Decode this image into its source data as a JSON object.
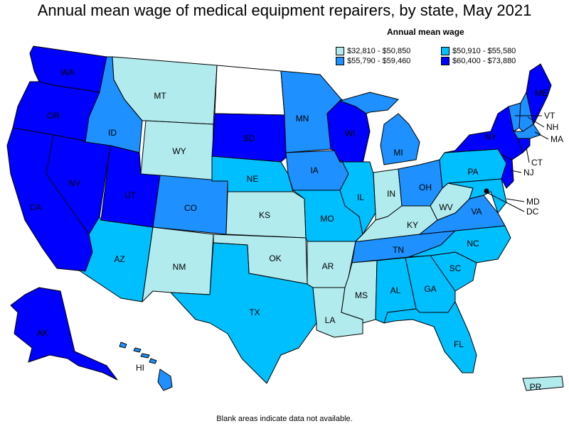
{
  "title": "Annual mean wage of medical equipment repairers, by state, May 2021",
  "legend": {
    "title": "Annual mean wage",
    "items": [
      {
        "label": "$32,810 - $50,850",
        "color": "#b2ebee"
      },
      {
        "label": "$50,910 - $55,580",
        "color": "#00bfff"
      },
      {
        "label": "$55,790 - $59,460",
        "color": "#1e90ff"
      },
      {
        "label": "$60,400 - $73,880",
        "color": "#0000ff"
      }
    ]
  },
  "footnote": "Blank areas indicate data not available.",
  "states": {
    "WA": {
      "label": "WA",
      "tier": 3
    },
    "OR": {
      "label": "OR",
      "tier": 3
    },
    "CA": {
      "label": "CA",
      "tier": 3
    },
    "NV": {
      "label": "NV",
      "tier": 3
    },
    "ID": {
      "label": "ID",
      "tier": 2
    },
    "MT": {
      "label": "MT",
      "tier": 0
    },
    "WY": {
      "label": "WY",
      "tier": 0
    },
    "UT": {
      "label": "UT",
      "tier": 3
    },
    "AZ": {
      "label": "AZ",
      "tier": 1
    },
    "CO": {
      "label": "CO",
      "tier": 2
    },
    "NM": {
      "label": "NM",
      "tier": 0
    },
    "ND": {
      "label": "",
      "tier": -1
    },
    "SD": {
      "label": "SD",
      "tier": 3
    },
    "NE": {
      "label": "NE",
      "tier": 1
    },
    "KS": {
      "label": "KS",
      "tier": 0
    },
    "OK": {
      "label": "OK",
      "tier": 0
    },
    "TX": {
      "label": "TX",
      "tier": 1
    },
    "MN": {
      "label": "MN",
      "tier": 2
    },
    "IA": {
      "label": "IA",
      "tier": 2
    },
    "MO": {
      "label": "MO",
      "tier": 1
    },
    "AR": {
      "label": "AR",
      "tier": 0
    },
    "LA": {
      "label": "LA",
      "tier": 0
    },
    "WI": {
      "label": "WI",
      "tier": 3
    },
    "IL": {
      "label": "IL",
      "tier": 1
    },
    "MI": {
      "label": "MI",
      "tier": 2
    },
    "IN": {
      "label": "IN",
      "tier": 0
    },
    "OH": {
      "label": "OH",
      "tier": 2
    },
    "KY": {
      "label": "KY",
      "tier": 0
    },
    "TN": {
      "label": "TN",
      "tier": 2
    },
    "MS": {
      "label": "MS",
      "tier": 0
    },
    "AL": {
      "label": "AL",
      "tier": 1
    },
    "GA": {
      "label": "GA",
      "tier": 1
    },
    "FL": {
      "label": "FL",
      "tier": 1
    },
    "SC": {
      "label": "SC",
      "tier": 1
    },
    "NC": {
      "label": "NC",
      "tier": 1
    },
    "VA": {
      "label": "VA",
      "tier": 2
    },
    "WV": {
      "label": "WV",
      "tier": 0
    },
    "PA": {
      "label": "PA",
      "tier": 1
    },
    "NY": {
      "label": "NY",
      "tier": 3
    },
    "VT": {
      "label": "VT",
      "tier": 2
    },
    "NH": {
      "label": "NH",
      "tier": 2
    },
    "ME": {
      "label": "ME",
      "tier": 3
    },
    "MA": {
      "label": "MA",
      "tier": 2
    },
    "CT": {
      "label": "CT",
      "tier": 3
    },
    "NJ": {
      "label": "NJ",
      "tier": 3
    },
    "MD": {
      "label": "MD",
      "tier": 1
    },
    "DC": {
      "label": "DC",
      "tier": 3
    },
    "AK": {
      "label": "AK",
      "tier": 3
    },
    "HI": {
      "label": "HI",
      "tier": 2
    },
    "PR": {
      "label": "PR",
      "tier": 0
    }
  }
}
